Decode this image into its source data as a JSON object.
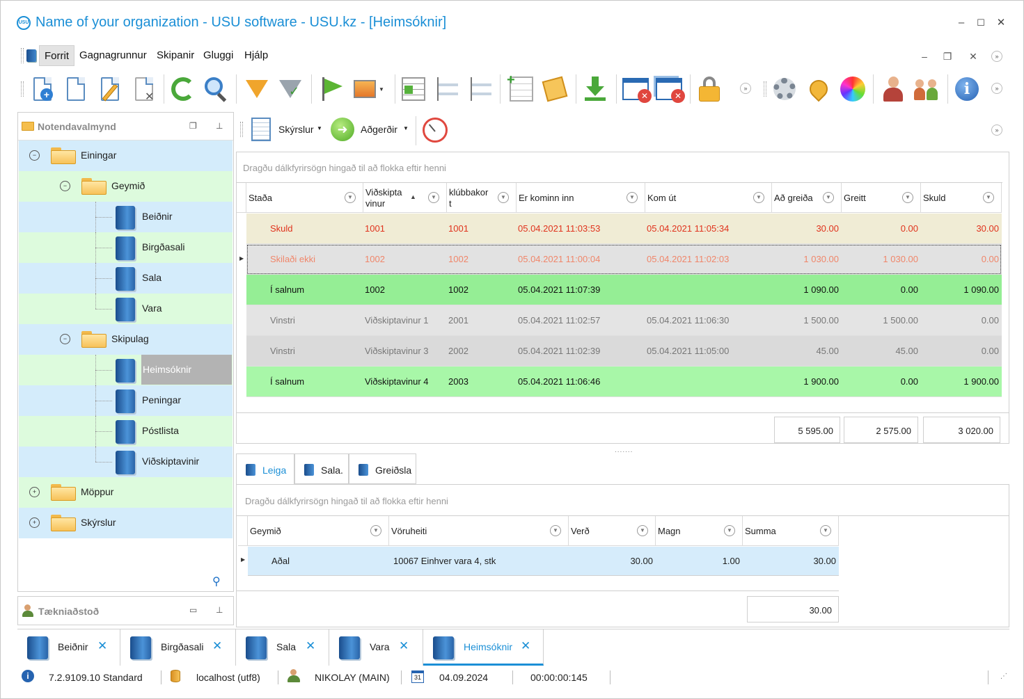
{
  "window": {
    "title": "Name of your organization - USU software - USU.kz - [Heimsóknir]",
    "logo_text": "USU",
    "controls": {
      "minimize": "‒",
      "maximize": "☐",
      "close": "✕"
    }
  },
  "menu": {
    "items": [
      "Forrit",
      "Gagnagrunnur",
      "Skipanir",
      "Gluggi",
      "Hjálp"
    ],
    "active": "Forrit"
  },
  "mdi_controls": {
    "minimize": "‒",
    "restore": "❐",
    "close": "✕"
  },
  "toolbar": {
    "icons": [
      "add-icon",
      "copy-icon",
      "edit-icon",
      "delete-icon",
      "refresh-icon",
      "search-icon",
      "filter-icon",
      "filter-check-icon",
      "flag-icon",
      "image-icon",
      "expand-rows-icon",
      "collapse-tree-icon",
      "expand-tree-icon",
      "add-column-icon",
      "notes-icon",
      "download-icon",
      "close-window-icon",
      "close-all-windows-icon",
      "lock-icon",
      "settings-icon",
      "location-pin-icon",
      "color-wheel-icon",
      "user-key-icon",
      "users-icon",
      "info-icon"
    ]
  },
  "left_panel": {
    "title": "Notendavalmynd",
    "tree": [
      {
        "label": "Einingar",
        "level": 0,
        "type": "folder",
        "expander": "⊖",
        "bg": "#d4ecfb"
      },
      {
        "label": "Geymið",
        "level": 1,
        "type": "folder",
        "expander": "⊖",
        "bg": "#ddfbdd"
      },
      {
        "label": "Beiðnir",
        "level": 2,
        "type": "book",
        "bg": "#d4ecfb"
      },
      {
        "label": "Birgðasali",
        "level": 2,
        "type": "book",
        "bg": "#ddfbdd"
      },
      {
        "label": "Sala",
        "level": 2,
        "type": "book",
        "bg": "#d4ecfb"
      },
      {
        "label": "Vara",
        "level": 2,
        "type": "book",
        "bg": "#ddfbdd"
      },
      {
        "label": "Skipulag",
        "level": 1,
        "type": "folder",
        "expander": "⊖",
        "bg": "#d4ecfb"
      },
      {
        "label": "Heimsóknir",
        "level": 2,
        "type": "book",
        "bg": "#ddfbdd",
        "selected": true
      },
      {
        "label": "Peningar",
        "level": 2,
        "type": "book",
        "bg": "#d4ecfb"
      },
      {
        "label": "Póstlista",
        "level": 2,
        "type": "book",
        "bg": "#ddfbdd"
      },
      {
        "label": "Viðskiptavinir",
        "level": 2,
        "type": "book",
        "bg": "#d4ecfb"
      },
      {
        "label": "Möppur",
        "level": 0,
        "type": "folder",
        "expander": "⊕",
        "bg": "#ddfbdd"
      },
      {
        "label": "Skýrslur",
        "level": 0,
        "type": "folder",
        "expander": "⊕",
        "bg": "#d4ecfb"
      }
    ],
    "support_title": "Tækniaðstoð"
  },
  "right_toolbar": {
    "reports_label": "Skýrslur",
    "actions_label": "Aðgerðir"
  },
  "main_grid": {
    "group_hint": "Dragðu dálkfyrirsögn hingað til að flokka eftir henni",
    "columns": [
      "Staða",
      "Viðskipta vinur",
      "klúbbakor t",
      "Er kominn inn",
      "Kom út",
      "Að greiða",
      "Greitt",
      "Skuld"
    ],
    "rows": [
      {
        "status": "Skuld",
        "client": "1001",
        "card": "1001",
        "in": "05.04.2021 11:03:53",
        "out": "05.04.2021 11:05:34",
        "to_pay": "30.00",
        "paid": "0.00",
        "debt": "30.00",
        "bg": "#f0ecd5",
        "color": "#e0321c",
        "bold": false
      },
      {
        "status": "Skilaði ekki",
        "client": "1002",
        "card": "1002",
        "in": "05.04.2021 11:00:04",
        "out": "05.04.2021 11:02:03",
        "to_pay": "1 030.00",
        "paid": "1 030.00",
        "debt": "0.00",
        "bg": "#e2e2e2",
        "color": "#f0866a",
        "bold": false,
        "focused": true
      },
      {
        "status": "Í salnum",
        "client": "1002",
        "card": "1002",
        "in": "05.04.2021 11:07:39",
        "out": "",
        "to_pay": "1 090.00",
        "paid": "0.00",
        "debt": "1 090.00",
        "bg": "#95ee95",
        "color": "#111111",
        "bold": false
      },
      {
        "status": "Vinstri",
        "client": "Viðskiptavinur 1",
        "card": "2001",
        "in": "05.04.2021 11:02:57",
        "out": "05.04.2021 11:06:30",
        "to_pay": "1 500.00",
        "paid": "1 500.00",
        "debt": "0.00",
        "bg": "#e4e4e4",
        "color": "#777777",
        "bold": false
      },
      {
        "status": "Vinstri",
        "client": "Viðskiptavinur 3",
        "card": "2002",
        "in": "05.04.2021 11:02:39",
        "out": "05.04.2021 11:05:00",
        "to_pay": "45.00",
        "paid": "45.00",
        "debt": "0.00",
        "bg": "#dadada",
        "color": "#777777",
        "bold": false
      },
      {
        "status": "Í salnum",
        "client": "Viðskiptavinur 4",
        "card": "2003",
        "in": "05.04.2021 11:06:46",
        "out": "",
        "to_pay": "1 900.00",
        "paid": "0.00",
        "debt": "1 900.00",
        "bg": "#a8f7a8",
        "color": "#111111",
        "bold": false
      }
    ],
    "totals": {
      "to_pay": "5 595.00",
      "paid": "2 575.00",
      "debt": "3 020.00"
    }
  },
  "detail_tabs": [
    "Leiga",
    "Sala.",
    "Greiðsla"
  ],
  "detail_grid": {
    "group_hint": "Dragðu dálkfyrirsögn hingað til að flokka eftir henni",
    "columns": [
      "Geymið",
      "Vöruheiti",
      "Verð",
      "Magn",
      "Summa"
    ],
    "rows": [
      {
        "store": "Aðal",
        "product": "10067 Einhver vara 4, stk",
        "price": "30.00",
        "qty": "1.00",
        "sum": "30.00"
      }
    ],
    "total": "30.00"
  },
  "doc_tabs": [
    {
      "label": "Beiðnir",
      "active": false
    },
    {
      "label": "Birgðasali",
      "active": false
    },
    {
      "label": "Sala",
      "active": false
    },
    {
      "label": "Vara",
      "active": false
    },
    {
      "label": "Heimsóknir",
      "active": true
    }
  ],
  "status_bar": {
    "version": "7.2.9109.10 Standard",
    "server": "localhost (utf8)",
    "user": "NIKOLAY (MAIN)",
    "calendar_day": "31",
    "date": "04.09.2024",
    "timer": "00:00:00:145"
  },
  "colors": {
    "accent": "#1b8fd6",
    "tree_blue": "#d4ecfb",
    "tree_green": "#ddfbdd",
    "row_green": "#95ee95"
  }
}
